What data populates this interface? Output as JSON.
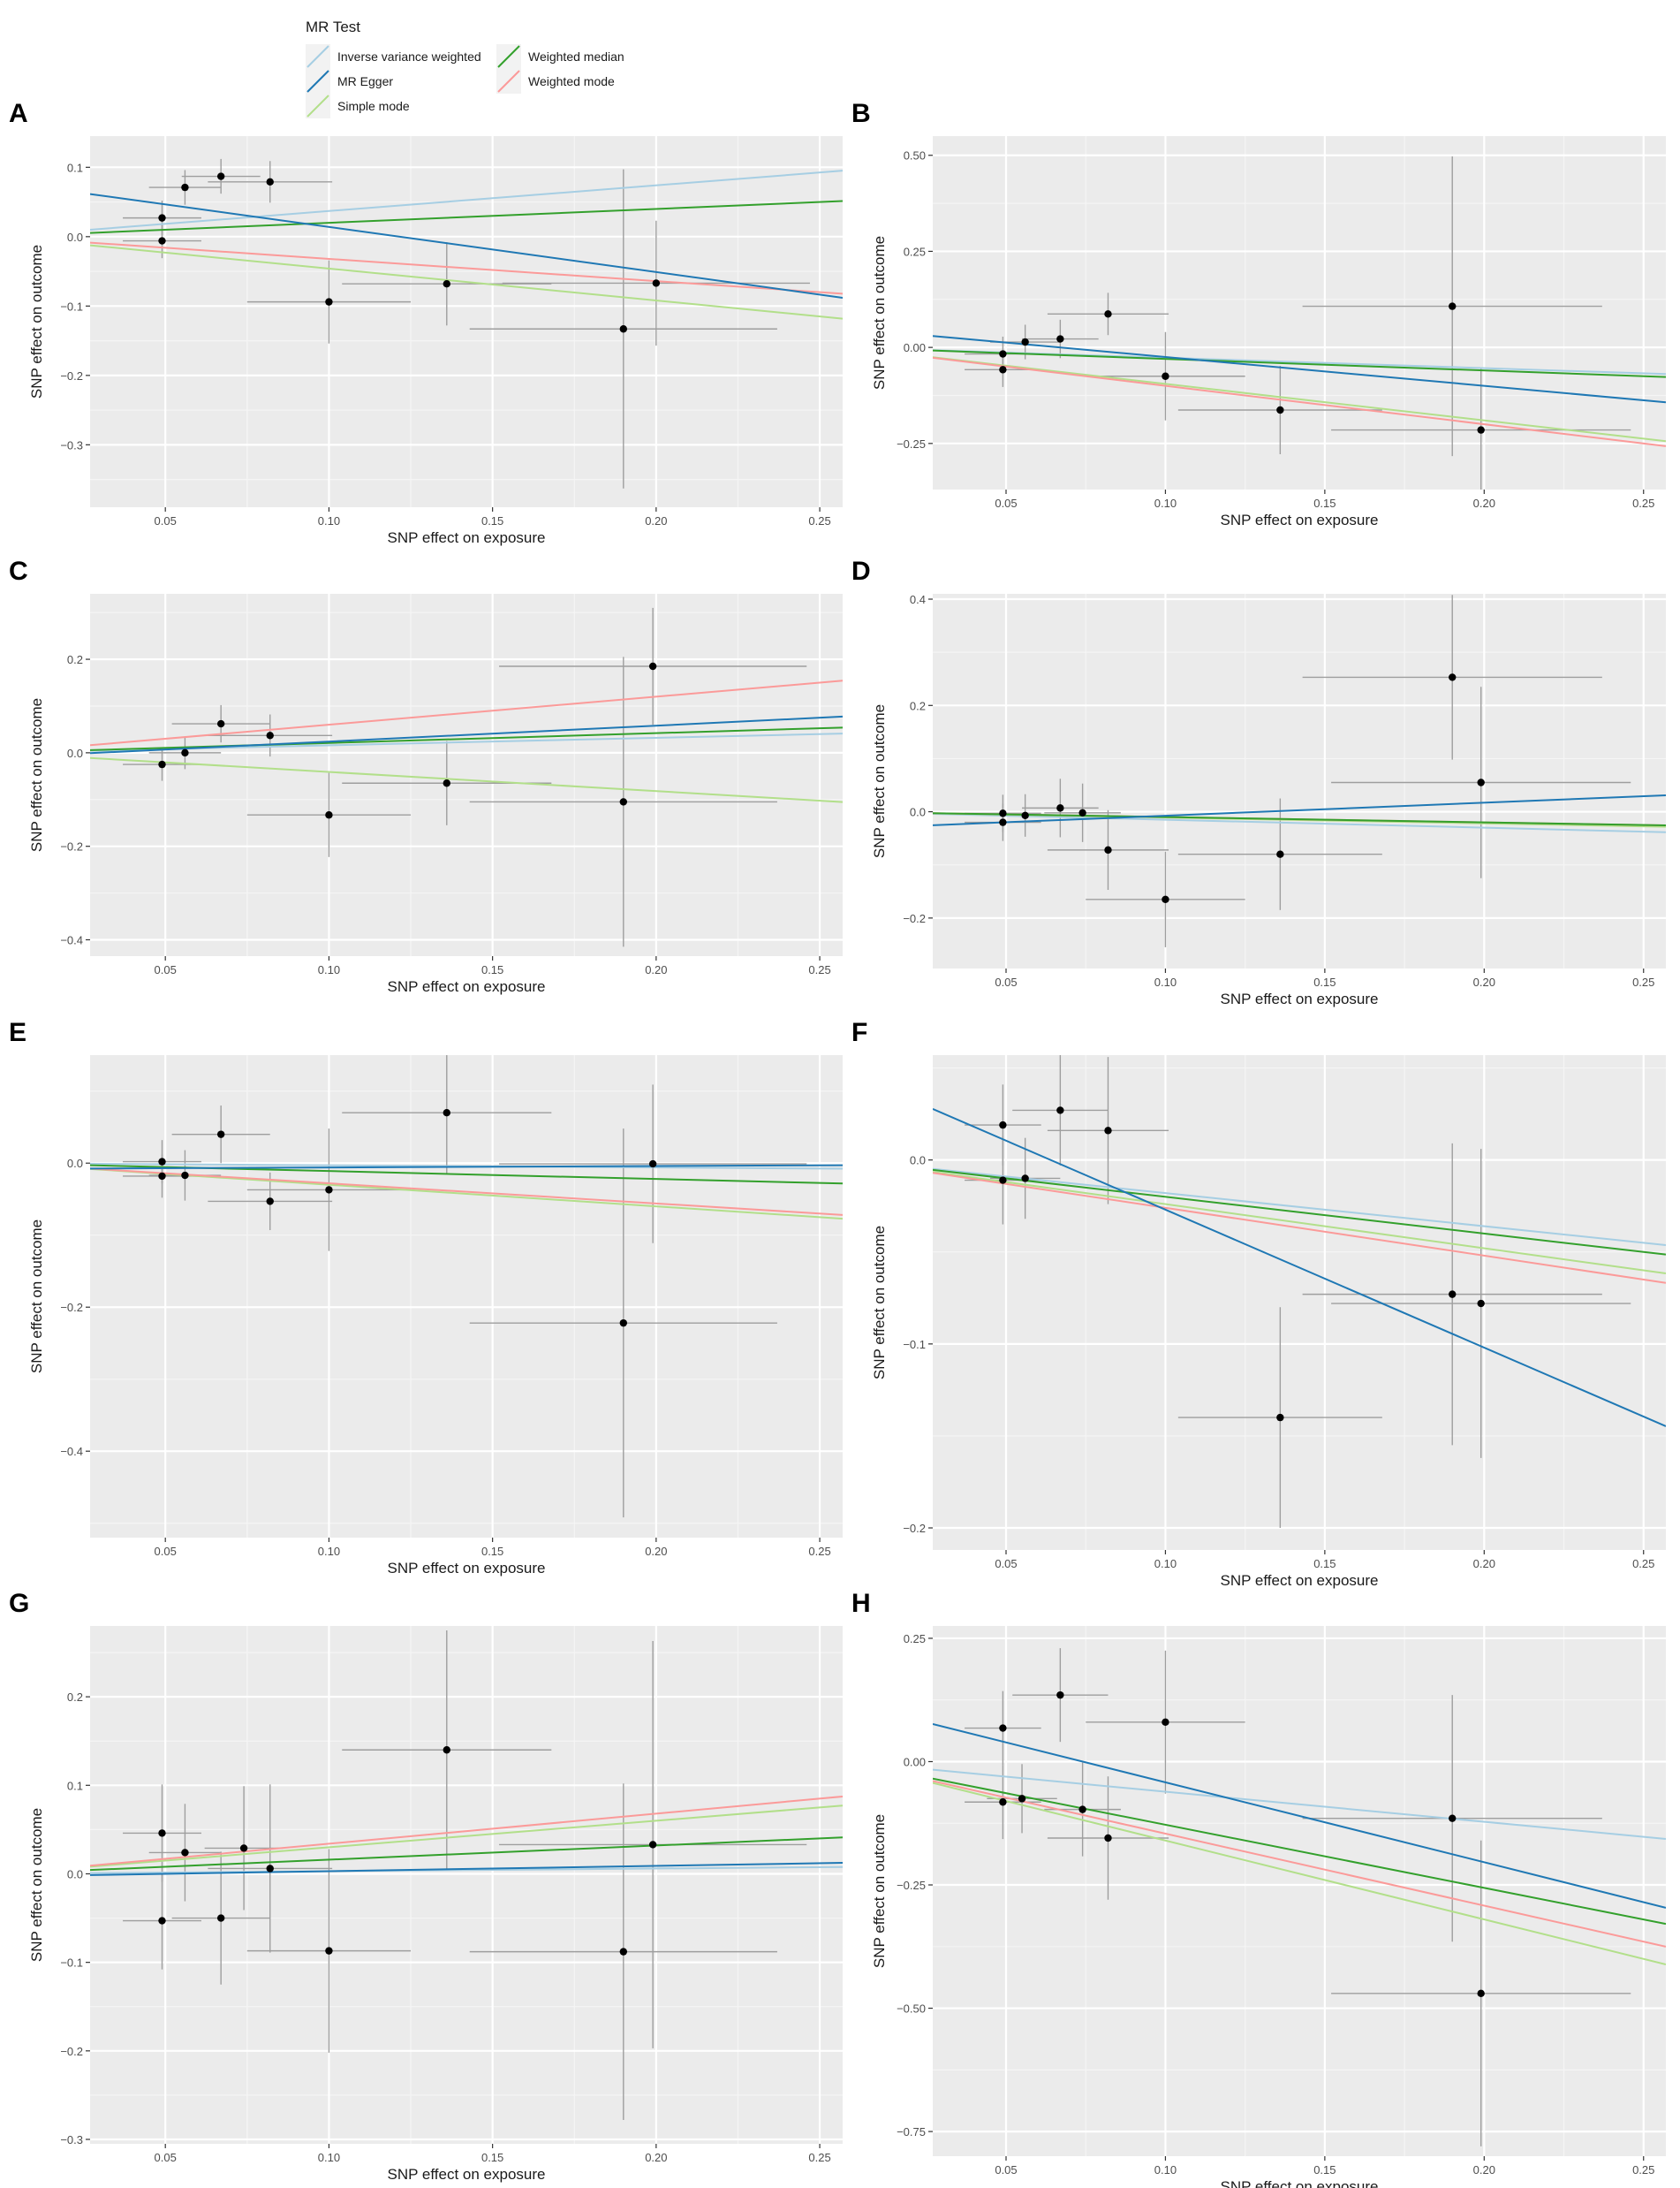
{
  "legend": {
    "title": "MR Test",
    "entries": [
      {
        "key": "ivw",
        "label": "Inverse variance weighted",
        "color": "#a6cee3"
      },
      {
        "key": "egger",
        "label": "MR Egger",
        "color": "#1f78b4"
      },
      {
        "key": "smode",
        "label": "Simple mode",
        "color": "#b2df8a"
      },
      {
        "key": "wmed",
        "label": "Weighted median",
        "color": "#33a02c"
      },
      {
        "key": "wmode",
        "label": "Weighted mode",
        "color": "#fb9a99"
      }
    ]
  },
  "chart_data": [
    {
      "panel": "A",
      "type": "scatter",
      "xlabel": "SNP effect on exposure",
      "ylabel": "SNP effect on outcome",
      "xlim": [
        0.027,
        0.257
      ],
      "ylim": [
        -0.39,
        0.145
      ],
      "xticks": [
        0.05,
        0.1,
        0.15,
        0.2,
        0.25
      ],
      "xtick_labels": [
        "0.05",
        "0.10",
        "0.15",
        "0.20",
        "0.25"
      ],
      "yticks": [
        -0.3,
        -0.2,
        -0.1,
        0.0,
        0.1
      ],
      "ytick_labels": [
        "−0.3",
        "−0.2",
        "−0.1",
        "0.0",
        "0.1"
      ],
      "points": [
        {
          "x": 0.049,
          "y": 0.027,
          "xse": 0.012,
          "yse": 0.025
        },
        {
          "x": 0.049,
          "y": -0.006,
          "xse": 0.012,
          "yse": 0.025
        },
        {
          "x": 0.056,
          "y": 0.071,
          "xse": 0.011,
          "yse": 0.025
        },
        {
          "x": 0.067,
          "y": 0.087,
          "xse": 0.012,
          "yse": 0.025
        },
        {
          "x": 0.082,
          "y": 0.079,
          "xse": 0.019,
          "yse": 0.03
        },
        {
          "x": 0.1,
          "y": -0.094,
          "xse": 0.025,
          "yse": 0.06
        },
        {
          "x": 0.136,
          "y": -0.068,
          "xse": 0.032,
          "yse": 0.06
        },
        {
          "x": 0.19,
          "y": -0.133,
          "xse": 0.047,
          "yse": 0.23
        },
        {
          "x": 0.2,
          "y": -0.067,
          "xse": 0.047,
          "yse": 0.09
        }
      ],
      "lines": {
        "ivw": {
          "intercept": 0,
          "slope": 0.37
        },
        "egger": {
          "intercept": 0.079,
          "slope": -0.65
        },
        "smode": {
          "intercept": 0,
          "slope": -0.46
        },
        "wmed": {
          "intercept": 0,
          "slope": 0.2
        },
        "wmode": {
          "intercept": 0,
          "slope": -0.32
        }
      }
    },
    {
      "panel": "B",
      "type": "scatter",
      "xlabel": "SNP effect on exposure",
      "ylabel": "SNP effect on outcome",
      "xlim": [
        0.027,
        0.257
      ],
      "ylim": [
        -0.37,
        0.55
      ],
      "xticks": [
        0.05,
        0.1,
        0.15,
        0.2,
        0.25
      ],
      "xtick_labels": [
        "0.05",
        "0.10",
        "0.15",
        "0.20",
        "0.25"
      ],
      "yticks": [
        -0.25,
        0.0,
        0.25,
        0.5
      ],
      "ytick_labels": [
        "−0.25",
        "0.00",
        "0.25",
        "0.50"
      ],
      "points": [
        {
          "x": 0.049,
          "y": -0.017,
          "xse": 0.012,
          "yse": 0.045
        },
        {
          "x": 0.049,
          "y": -0.058,
          "xse": 0.012,
          "yse": 0.045
        },
        {
          "x": 0.056,
          "y": 0.014,
          "xse": 0.011,
          "yse": 0.045
        },
        {
          "x": 0.067,
          "y": 0.022,
          "xse": 0.012,
          "yse": 0.05
        },
        {
          "x": 0.082,
          "y": 0.087,
          "xse": 0.019,
          "yse": 0.055
        },
        {
          "x": 0.1,
          "y": -0.075,
          "xse": 0.025,
          "yse": 0.115
        },
        {
          "x": 0.136,
          "y": -0.163,
          "xse": 0.032,
          "yse": 0.115
        },
        {
          "x": 0.19,
          "y": 0.107,
          "xse": 0.047,
          "yse": 0.39
        },
        {
          "x": 0.199,
          "y": -0.215,
          "xse": 0.047,
          "yse": 0.16
        }
      ],
      "lines": {
        "ivw": {
          "intercept": 0,
          "slope": -0.27
        },
        "egger": {
          "intercept": 0.05,
          "slope": -0.75
        },
        "smode": {
          "intercept": 0,
          "slope": -0.95
        },
        "wmed": {
          "intercept": 0,
          "slope": -0.3
        },
        "wmode": {
          "intercept": 0,
          "slope": -1.0
        }
      }
    },
    {
      "panel": "C",
      "type": "scatter",
      "xlabel": "SNP effect on exposure",
      "ylabel": "SNP effect on outcome",
      "xlim": [
        0.027,
        0.257
      ],
      "ylim": [
        -0.435,
        0.34
      ],
      "xticks": [
        0.05,
        0.1,
        0.15,
        0.2,
        0.25
      ],
      "xtick_labels": [
        "0.05",
        "0.10",
        "0.15",
        "0.20",
        "0.25"
      ],
      "yticks": [
        -0.4,
        -0.2,
        0.0,
        0.2
      ],
      "ytick_labels": [
        "−0.4",
        "−0.2",
        "0.0",
        "0.2"
      ],
      "points": [
        {
          "x": 0.049,
          "y": -0.025,
          "xse": 0.012,
          "yse": 0.035
        },
        {
          "x": 0.056,
          "y": 0.0,
          "xse": 0.011,
          "yse": 0.035
        },
        {
          "x": 0.067,
          "y": 0.062,
          "xse": 0.015,
          "yse": 0.04
        },
        {
          "x": 0.082,
          "y": 0.037,
          "xse": 0.019,
          "yse": 0.045
        },
        {
          "x": 0.1,
          "y": -0.133,
          "xse": 0.025,
          "yse": 0.09
        },
        {
          "x": 0.136,
          "y": -0.065,
          "xse": 0.032,
          "yse": 0.09
        },
        {
          "x": 0.19,
          "y": -0.105,
          "xse": 0.047,
          "yse": 0.31
        },
        {
          "x": 0.199,
          "y": 0.185,
          "xse": 0.047,
          "yse": 0.125
        }
      ],
      "lines": {
        "ivw": {
          "intercept": 0,
          "slope": 0.16
        },
        "egger": {
          "intercept": -0.01,
          "slope": 0.34
        },
        "smode": {
          "intercept": 0,
          "slope": -0.41
        },
        "wmed": {
          "intercept": 0,
          "slope": 0.21
        },
        "wmode": {
          "intercept": 0,
          "slope": 0.6
        }
      }
    },
    {
      "panel": "D",
      "type": "scatter",
      "xlabel": "SNP effect on exposure",
      "ylabel": "SNP effect on outcome",
      "xlim": [
        0.027,
        0.257
      ],
      "ylim": [
        -0.295,
        0.41
      ],
      "xticks": [
        0.05,
        0.1,
        0.15,
        0.2,
        0.25
      ],
      "xtick_labels": [
        "0.05",
        "0.10",
        "0.15",
        "0.20",
        "0.25"
      ],
      "yticks": [
        -0.2,
        0.0,
        0.2,
        0.4
      ],
      "ytick_labels": [
        "−0.2",
        "0.0",
        "0.2",
        "0.4"
      ],
      "points": [
        {
          "x": 0.049,
          "y": -0.003,
          "xse": 0.012,
          "yse": 0.035
        },
        {
          "x": 0.049,
          "y": -0.02,
          "xse": 0.012,
          "yse": 0.035
        },
        {
          "x": 0.056,
          "y": -0.007,
          "xse": 0.011,
          "yse": 0.04
        },
        {
          "x": 0.067,
          "y": 0.007,
          "xse": 0.012,
          "yse": 0.055
        },
        {
          "x": 0.074,
          "y": -0.002,
          "xse": 0.012,
          "yse": 0.055
        },
        {
          "x": 0.082,
          "y": -0.072,
          "xse": 0.019,
          "yse": 0.075
        },
        {
          "x": 0.1,
          "y": -0.165,
          "xse": 0.025,
          "yse": 0.09
        },
        {
          "x": 0.136,
          "y": -0.08,
          "xse": 0.032,
          "yse": 0.105
        },
        {
          "x": 0.19,
          "y": 0.253,
          "xse": 0.047,
          "yse": 0.155
        },
        {
          "x": 0.199,
          "y": 0.055,
          "xse": 0.047,
          "yse": 0.18
        }
      ],
      "lines": {
        "ivw": {
          "intercept": 0,
          "slope": -0.15
        },
        "egger": {
          "intercept": -0.032,
          "slope": 0.245
        },
        "smode": {
          "intercept": 0,
          "slope": -0.11
        },
        "wmed": {
          "intercept": 0,
          "slope": -0.1
        },
        "wmode": {
          "intercept": 0,
          "slope": -0.1
        }
      }
    },
    {
      "panel": "E",
      "type": "scatter",
      "xlabel": "SNP effect on exposure",
      "ylabel": "SNP effect on outcome",
      "xlim": [
        0.027,
        0.257
      ],
      "ylim": [
        -0.52,
        0.15
      ],
      "xticks": [
        0.05,
        0.1,
        0.15,
        0.2,
        0.25
      ],
      "xtick_labels": [
        "0.05",
        "0.10",
        "0.15",
        "0.20",
        "0.25"
      ],
      "yticks": [
        -0.4,
        -0.2,
        0.0
      ],
      "ytick_labels": [
        "−0.4",
        "−0.2",
        "0.0"
      ],
      "points": [
        {
          "x": 0.049,
          "y": 0.002,
          "xse": 0.012,
          "yse": 0.03
        },
        {
          "x": 0.049,
          "y": -0.018,
          "xse": 0.012,
          "yse": 0.03
        },
        {
          "x": 0.056,
          "y": -0.017,
          "xse": 0.011,
          "yse": 0.035
        },
        {
          "x": 0.067,
          "y": 0.04,
          "xse": 0.015,
          "yse": 0.04
        },
        {
          "x": 0.082,
          "y": -0.053,
          "xse": 0.019,
          "yse": 0.04
        },
        {
          "x": 0.1,
          "y": -0.037,
          "xse": 0.025,
          "yse": 0.085
        },
        {
          "x": 0.136,
          "y": 0.07,
          "xse": 0.032,
          "yse": 0.085
        },
        {
          "x": 0.19,
          "y": -0.222,
          "xse": 0.047,
          "yse": 0.27
        },
        {
          "x": 0.199,
          "y": -0.001,
          "xse": 0.047,
          "yse": 0.11
        }
      ],
      "lines": {
        "ivw": {
          "intercept": 0,
          "slope": -0.03
        },
        "egger": {
          "intercept": -0.008,
          "slope": 0.02
        },
        "smode": {
          "intercept": 0,
          "slope": -0.3
        },
        "wmed": {
          "intercept": 0,
          "slope": -0.11
        },
        "wmode": {
          "intercept": 0,
          "slope": -0.28
        }
      }
    },
    {
      "panel": "F",
      "type": "scatter",
      "xlabel": "SNP effect on exposure",
      "ylabel": "SNP effect on outcome",
      "xlim": [
        0.027,
        0.257
      ],
      "ylim": [
        -0.212,
        0.057
      ],
      "xticks": [
        0.05,
        0.1,
        0.15,
        0.2,
        0.25
      ],
      "xtick_labels": [
        "0.05",
        "0.10",
        "0.15",
        "0.20",
        "0.25"
      ],
      "yticks": [
        -0.2,
        -0.1,
        0.0
      ],
      "ytick_labels": [
        "−0.2",
        "−0.1",
        "0.0"
      ],
      "points": [
        {
          "x": 0.049,
          "y": 0.019,
          "xse": 0.012,
          "yse": 0.022
        },
        {
          "x": 0.049,
          "y": -0.011,
          "xse": 0.012,
          "yse": 0.024
        },
        {
          "x": 0.056,
          "y": -0.01,
          "xse": 0.011,
          "yse": 0.022
        },
        {
          "x": 0.067,
          "y": 0.027,
          "xse": 0.015,
          "yse": 0.03
        },
        {
          "x": 0.082,
          "y": 0.016,
          "xse": 0.019,
          "yse": 0.04
        },
        {
          "x": 0.136,
          "y": -0.14,
          "xse": 0.032,
          "yse": 0.06
        },
        {
          "x": 0.19,
          "y": -0.073,
          "xse": 0.047,
          "yse": 0.082
        },
        {
          "x": 0.199,
          "y": -0.078,
          "xse": 0.047,
          "yse": 0.084
        }
      ],
      "lines": {
        "ivw": {
          "intercept": 0,
          "slope": -0.18
        },
        "egger": {
          "intercept": 0.048,
          "slope": -0.75
        },
        "smode": {
          "intercept": 0,
          "slope": -0.24
        },
        "wmed": {
          "intercept": 0,
          "slope": -0.2
        },
        "wmode": {
          "intercept": 0,
          "slope": -0.26
        }
      }
    },
    {
      "panel": "G",
      "type": "scatter",
      "xlabel": "SNP effect on exposure",
      "ylabel": "SNP effect on outcome",
      "xlim": [
        0.027,
        0.257
      ],
      "ylim": [
        -0.305,
        0.28
      ],
      "xticks": [
        0.05,
        0.1,
        0.15,
        0.2,
        0.25
      ],
      "xtick_labels": [
        "0.05",
        "0.10",
        "0.15",
        "0.20",
        "0.25"
      ],
      "yticks": [
        -0.3,
        -0.2,
        -0.1,
        0.0,
        0.1,
        0.2
      ],
      "ytick_labels": [
        "−0.3",
        "−0.2",
        "−0.1",
        "0.0",
        "0.1",
        "0.2"
      ],
      "points": [
        {
          "x": 0.049,
          "y": 0.046,
          "xse": 0.012,
          "yse": 0.055
        },
        {
          "x": 0.049,
          "y": -0.053,
          "xse": 0.012,
          "yse": 0.055
        },
        {
          "x": 0.056,
          "y": 0.024,
          "xse": 0.011,
          "yse": 0.055
        },
        {
          "x": 0.067,
          "y": -0.05,
          "xse": 0.015,
          "yse": 0.075
        },
        {
          "x": 0.074,
          "y": 0.029,
          "xse": 0.012,
          "yse": 0.07
        },
        {
          "x": 0.082,
          "y": 0.006,
          "xse": 0.019,
          "yse": 0.095
        },
        {
          "x": 0.1,
          "y": -0.087,
          "xse": 0.025,
          "yse": 0.115
        },
        {
          "x": 0.136,
          "y": 0.14,
          "xse": 0.032,
          "yse": 0.135
        },
        {
          "x": 0.19,
          "y": -0.088,
          "xse": 0.047,
          "yse": 0.19
        },
        {
          "x": 0.199,
          "y": 0.033,
          "xse": 0.047,
          "yse": 0.23
        }
      ],
      "lines": {
        "ivw": {
          "intercept": 0,
          "slope": 0.03
        },
        "egger": {
          "intercept": -0.003,
          "slope": 0.06
        },
        "smode": {
          "intercept": 0,
          "slope": 0.3
        },
        "wmed": {
          "intercept": 0,
          "slope": 0.16
        },
        "wmode": {
          "intercept": 0,
          "slope": 0.34
        }
      }
    },
    {
      "panel": "H",
      "type": "scatter",
      "xlabel": "SNP effect on exposure",
      "ylabel": "SNP effect on outcome",
      "xlim": [
        0.027,
        0.257
      ],
      "ylim": [
        -0.8,
        0.275
      ],
      "xticks": [
        0.05,
        0.1,
        0.15,
        0.2,
        0.25
      ],
      "xtick_labels": [
        "0.05",
        "0.10",
        "0.15",
        "0.20",
        "0.25"
      ],
      "yticks": [
        -0.75,
        -0.5,
        -0.25,
        0.0,
        0.25
      ],
      "ytick_labels": [
        "−0.75",
        "−0.50",
        "−0.25",
        "0.00",
        "0.25"
      ],
      "points": [
        {
          "x": 0.049,
          "y": 0.068,
          "xse": 0.012,
          "yse": 0.075
        },
        {
          "x": 0.049,
          "y": -0.082,
          "xse": 0.012,
          "yse": 0.075
        },
        {
          "x": 0.055,
          "y": -0.075,
          "xse": 0.011,
          "yse": 0.07
        },
        {
          "x": 0.067,
          "y": 0.135,
          "xse": 0.015,
          "yse": 0.095
        },
        {
          "x": 0.074,
          "y": -0.097,
          "xse": 0.012,
          "yse": 0.095
        },
        {
          "x": 0.082,
          "y": -0.155,
          "xse": 0.019,
          "yse": 0.125
        },
        {
          "x": 0.1,
          "y": 0.08,
          "xse": 0.025,
          "yse": 0.145
        },
        {
          "x": 0.19,
          "y": -0.115,
          "xse": 0.047,
          "yse": 0.25
        },
        {
          "x": 0.199,
          "y": -0.47,
          "xse": 0.047,
          "yse": 0.31
        }
      ],
      "lines": {
        "ivw": {
          "intercept": 0,
          "slope": -0.61
        },
        "egger": {
          "intercept": 0.12,
          "slope": -1.62
        },
        "smode": {
          "intercept": 0,
          "slope": -1.6
        },
        "wmed": {
          "intercept": 0,
          "slope": -1.28
        },
        "wmode": {
          "intercept": 0,
          "slope": -1.46
        }
      }
    }
  ]
}
